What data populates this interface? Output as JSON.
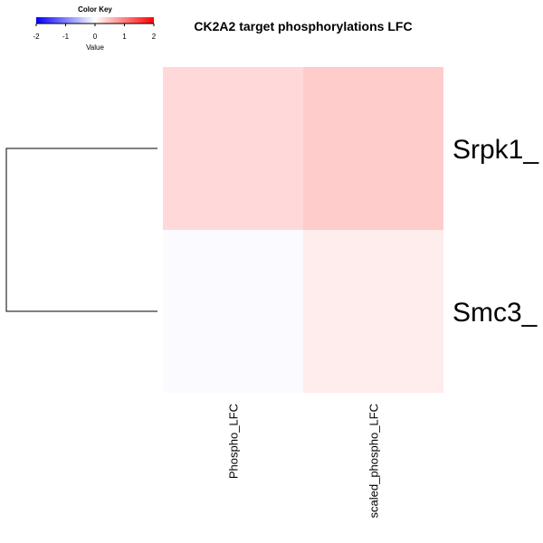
{
  "chart_data": {
    "type": "heatmap",
    "title": "CK2A2 target phosphorylations LFC",
    "rows": [
      "Srpk1_",
      "Smc3_"
    ],
    "columns": [
      "Phospho_LFC",
      "scaled_phospho_LFC"
    ],
    "values": [
      [
        0.3,
        0.4
      ],
      [
        -0.03,
        0.15
      ]
    ],
    "color_key": {
      "title": "Color Key",
      "label": "Value",
      "range": [
        -2,
        2
      ],
      "ticks": [
        "-2",
        "-1",
        "0",
        "1",
        "2"
      ],
      "colors": {
        "low": "#0000ff",
        "mid": "#ffffff",
        "high": "#ff0000"
      }
    },
    "row_dendrogram": true
  }
}
